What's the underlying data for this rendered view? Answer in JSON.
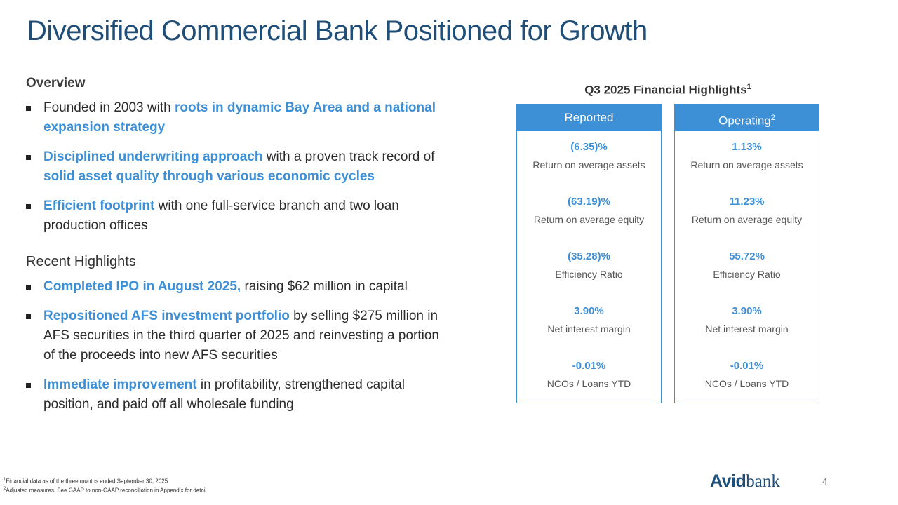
{
  "title": "Diversified Commercial Bank Positioned for Growth",
  "overview": {
    "heading": "Overview",
    "bullets": [
      {
        "a": "Founded in 2003 with ",
        "b": "roots in dynamic Bay Area and a national expansion strategy",
        "c": ""
      },
      {
        "a": "",
        "b": "Disciplined underwriting approach",
        "c": " with a proven track record of ",
        "d": "solid asset quality through various economic cycles"
      },
      {
        "a": "",
        "b": "Efficient footprint",
        "c": " with one full-service branch and two loan production offices"
      }
    ]
  },
  "recent": {
    "heading": "Recent Highlights",
    "bullets": [
      {
        "b": "Completed IPO in August 2025,",
        "c": " raising $62 million in capital"
      },
      {
        "b": "Repositioned AFS investment portfolio",
        "c": " by selling $275 million in AFS securities in the third quarter of 2025 and reinvesting a portion of the proceeds into new AFS securities"
      },
      {
        "b": "Immediate improvement",
        "c": " in profitability, strengthened capital position, and paid off all wholesale funding"
      }
    ]
  },
  "financial": {
    "title": "Q3 2025 Financial Highlights",
    "title_sup": "1",
    "reported": {
      "header": "Reported",
      "metrics": [
        {
          "value": "(6.35)%",
          "label": "Return on average assets"
        },
        {
          "value": "(63.19)%",
          "label": "Return on average equity"
        },
        {
          "value": "(35.28)%",
          "label": "Efficiency Ratio"
        },
        {
          "value": "3.90%",
          "label": "Net interest margin"
        },
        {
          "value": "-0.01%",
          "label": "NCOs / Loans YTD"
        }
      ]
    },
    "operating": {
      "header": "Operating",
      "header_sup": "2",
      "metrics": [
        {
          "value": "1.13%",
          "label": "Return on average assets"
        },
        {
          "value": "11.23%",
          "label": "Return on average equity"
        },
        {
          "value": "55.72%",
          "label": "Efficiency Ratio"
        },
        {
          "value": "3.90%",
          "label": "Net interest margin"
        },
        {
          "value": "-0.01%",
          "label": "NCOs / Loans YTD"
        }
      ]
    }
  },
  "footnotes": [
    {
      "sup": "1",
      "text": "Financial data as of the three months ended September 30, 2025"
    },
    {
      "sup": "2",
      "text": "Adjusted measures. See GAAP to non-GAAP reconciliation in Appendix for detail"
    }
  ],
  "logo": {
    "part1": "Avid",
    "part2": "bank"
  },
  "page_number": "4"
}
